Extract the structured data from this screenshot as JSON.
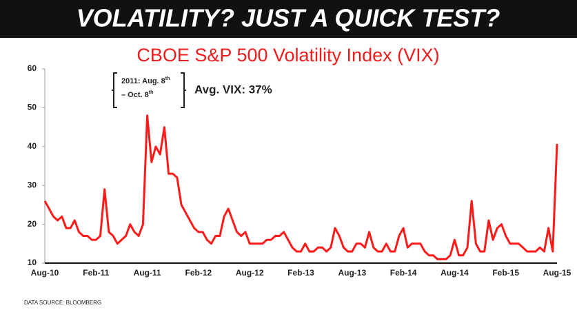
{
  "header": {
    "title": "VOLATILITY? JUST A QUICK TEST?"
  },
  "chart_data": {
    "type": "line",
    "title": "CBOE S&P 500 Volatility Index (VIX)",
    "annotations": {
      "period": {
        "line1": "2011: Aug. 8",
        "sup1": "th",
        "line2": "– Oct. 8",
        "sup2": "th"
      },
      "average": "Avg. VIX: 37%"
    },
    "source": "DATA SOURCE: BLOOMBERG",
    "categories": [
      "Aug-10",
      null,
      null,
      null,
      null,
      null,
      null,
      null,
      null,
      null,
      null,
      null,
      "Feb-11",
      null,
      null,
      null,
      null,
      null,
      null,
      null,
      null,
      null,
      null,
      null,
      "Aug-11",
      null,
      null,
      null,
      null,
      null,
      null,
      null,
      null,
      null,
      null,
      null,
      "Feb-12",
      null,
      null,
      null,
      null,
      null,
      null,
      null,
      null,
      null,
      null,
      null,
      "Aug-12",
      null,
      null,
      null,
      null,
      null,
      null,
      null,
      null,
      null,
      null,
      null,
      "Feb-13",
      null,
      null,
      null,
      null,
      null,
      null,
      null,
      null,
      null,
      null,
      null,
      "Aug-13",
      null,
      null,
      null,
      null,
      null,
      null,
      null,
      null,
      null,
      null,
      null,
      "Feb-14",
      null,
      null,
      null,
      null,
      null,
      null,
      null,
      null,
      null,
      null,
      null,
      "Aug-14",
      null,
      null,
      null,
      null,
      null,
      null,
      null,
      null,
      null,
      null,
      null,
      "Feb-15",
      null,
      null,
      null,
      null,
      null,
      null,
      null,
      null,
      null,
      null,
      null,
      "Aug-15"
    ],
    "series": [
      {
        "name": "VIX",
        "color": "#ff1a1a",
        "values": [
          26,
          24,
          22,
          21,
          22,
          19,
          19,
          21,
          18,
          17,
          17,
          16,
          16,
          17,
          29,
          18,
          17,
          15,
          16,
          17,
          20,
          18,
          17,
          20,
          48,
          36,
          40,
          38,
          45,
          33,
          33,
          32,
          25,
          23,
          21,
          19,
          18,
          18,
          16,
          15,
          17,
          17,
          22,
          24,
          21,
          18,
          17,
          18,
          15,
          15,
          15,
          15,
          16,
          16,
          17,
          17,
          18,
          16,
          14,
          13,
          13,
          15,
          13,
          13,
          14,
          14,
          13,
          14,
          19,
          17,
          14,
          13,
          13,
          15,
          15,
          14,
          18,
          14,
          13,
          13,
          15,
          13,
          13,
          17,
          19,
          14,
          15,
          15,
          15,
          13,
          12,
          12,
          11,
          11,
          11,
          12,
          16,
          12,
          12,
          14,
          26,
          15,
          13,
          13,
          21,
          16,
          19,
          20,
          17,
          15,
          15,
          15,
          14,
          13,
          13,
          13,
          14,
          13,
          19,
          13,
          40.7
        ]
      }
    ],
    "ylim": [
      10,
      60
    ],
    "yticks": [
      10,
      20,
      30,
      40,
      50,
      60
    ]
  }
}
